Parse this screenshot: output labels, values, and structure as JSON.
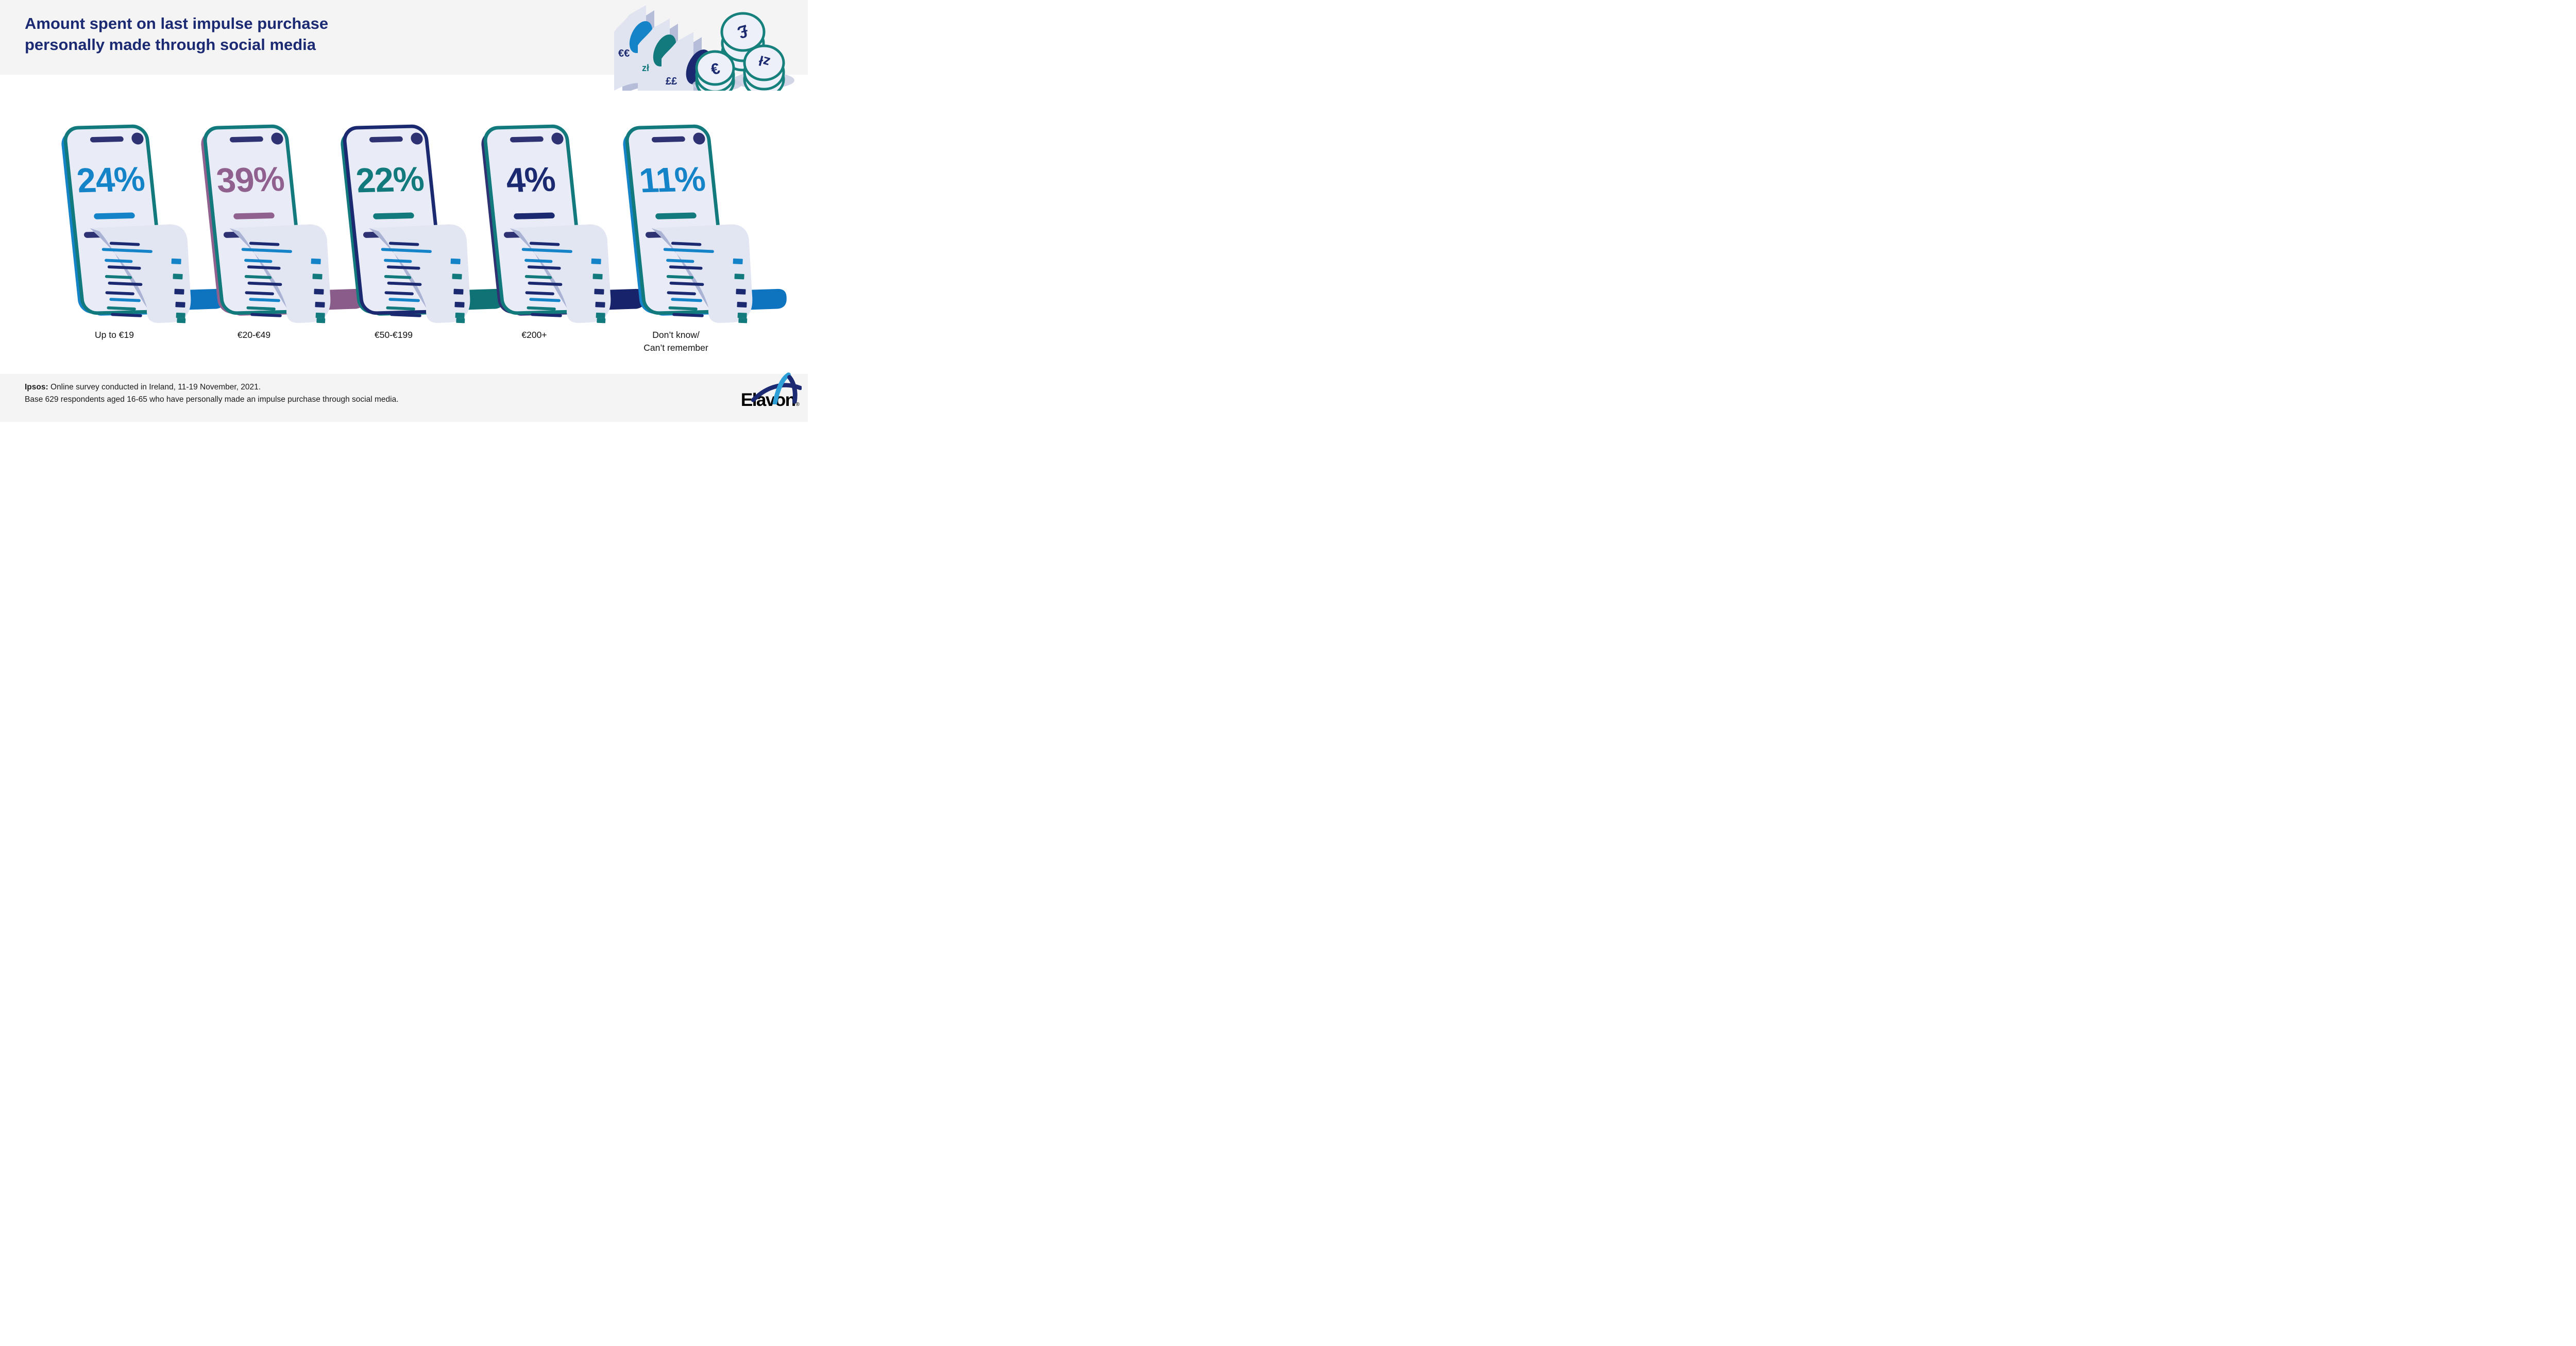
{
  "header": {
    "title": "Amount spent on last impulse purchase\npersonally made through social media",
    "title_color": "#1b2a72"
  },
  "chart_data": {
    "type": "bar",
    "title": "Amount spent on last impulse purchase personally made through social media",
    "unit": "percent",
    "categories": [
      "Up to €19",
      "€20-€49",
      "€50-€199",
      "€200+",
      "Don’t know/\nCan’t remember"
    ],
    "values": [
      24,
      39,
      22,
      4,
      11
    ],
    "items": [
      {
        "label": "Up to €19",
        "value": 24,
        "pct": "24%",
        "colors": {
          "side": "#1583c7",
          "frame": "#12797c",
          "pct": "#1583c7",
          "accent": "#1583c7",
          "ribbon": "#0f74c0"
        }
      },
      {
        "label": "€20-€49",
        "value": 39,
        "pct": "39%",
        "colors": {
          "side": "#90618f",
          "frame": "#12797c",
          "pct": "#90618f",
          "accent": "#90618f",
          "ribbon": "#8a5c89"
        }
      },
      {
        "label": "€50-€199",
        "value": 22,
        "pct": "22%",
        "colors": {
          "side": "#12797c",
          "frame": "#1b2a70",
          "pct": "#12797c",
          "accent": "#12797c",
          "ribbon": "#0f7376"
        }
      },
      {
        "label": "€200+",
        "value": 4,
        "pct": "4%",
        "colors": {
          "side": "#2e3272",
          "frame": "#12797c",
          "pct": "#1b2a70",
          "accent": "#1b2a70",
          "ribbon": "#17236b"
        }
      },
      {
        "label": "Don’t know/\nCan’t remember",
        "value": 11,
        "pct": "11%",
        "colors": {
          "side": "#1583c7",
          "frame": "#12797c",
          "pct": "#1583c7",
          "accent": "#12797c",
          "ribbon": "#0f74c0"
        }
      }
    ]
  },
  "illustration": {
    "notes": [
      {
        "label": "€€",
        "label_color": "#1b2a70",
        "oval": "#1583c7"
      },
      {
        "label": "zł",
        "label_color": "#12797c",
        "oval": "#12797c"
      },
      {
        "label": "££",
        "label_color": "#1b2a70",
        "oval": "#1b2a70"
      }
    ],
    "coins": [
      {
        "symbol": "£"
      },
      {
        "symbol": "€"
      },
      {
        "symbol": "zł"
      }
    ]
  },
  "footer": {
    "source_label": "Ipsos:",
    "source_text": " Online survey conducted in Ireland, 11-19 November, 2021.",
    "base_text": "Base 629 respondents aged 16-65 who have personally made an impulse purchase through social media.",
    "brand": "Elavon",
    "registered": "®"
  },
  "palette": {
    "navy": "#1b2a70",
    "blue": "#1583c7",
    "teal": "#12797c",
    "purple": "#90618f",
    "device_dark": "#2e3272",
    "screen": "#e9ecf6",
    "receipt": "#e2e6f2",
    "receipt_fold": "#aab3d3",
    "note_back": "#b6bdd9",
    "coin_face": "#edf0f8",
    "coin_ring": "#15807c",
    "shadow": "#c9cee2",
    "band": "#f4f4f4",
    "text_dark": "#1a1a1a",
    "title_navy": "#1b2a72",
    "swoosh_light": "#2f9fd7"
  }
}
